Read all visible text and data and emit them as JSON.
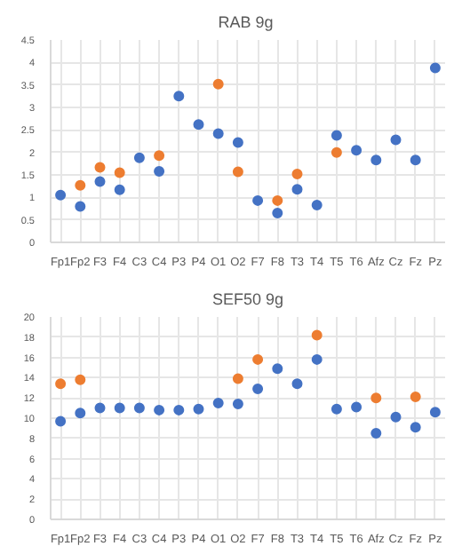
{
  "chart_data": [
    {
      "type": "scatter",
      "title": "RAB  9g",
      "categories": [
        "Fp1",
        "Fp2",
        "F3",
        "F4",
        "C3",
        "C4",
        "P3",
        "P4",
        "O1",
        "O2",
        "F7",
        "F8",
        "T3",
        "T4",
        "T5",
        "T6",
        "Afz",
        "Cz",
        "Fz",
        "Pz"
      ],
      "series": [
        {
          "color": "#4472c4",
          "values": [
            1.05,
            0.8,
            1.35,
            1.17,
            1.88,
            1.58,
            3.25,
            2.62,
            2.42,
            2.22,
            0.93,
            0.65,
            1.18,
            0.83,
            2.38,
            2.05,
            1.83,
            2.28,
            1.83,
            3.88
          ]
        },
        {
          "color": "#ed7d31",
          "values": [
            null,
            1.27,
            1.67,
            1.55,
            null,
            1.93,
            null,
            null,
            3.52,
            1.57,
            null,
            0.93,
            1.52,
            null,
            2.0,
            null,
            null,
            null,
            null,
            null
          ]
        }
      ],
      "ylim": [
        0,
        4.5
      ],
      "yticks": [
        0,
        0.5,
        1,
        1.5,
        2,
        2.5,
        3,
        3.5,
        4,
        4.5
      ],
      "grid": true,
      "marker": "circle"
    },
    {
      "type": "scatter",
      "title": "SEF50 9g",
      "categories": [
        "Fp1",
        "Fp2",
        "F3",
        "F4",
        "C3",
        "C4",
        "P3",
        "P4",
        "O1",
        "O2",
        "F7",
        "F8",
        "T3",
        "T4",
        "T5",
        "T6",
        "Afz",
        "Cz",
        "Fz",
        "Pz"
      ],
      "series": [
        {
          "color": "#4472c4",
          "values": [
            9.7,
            10.5,
            11.0,
            11.0,
            11.0,
            10.8,
            10.8,
            10.9,
            11.5,
            11.4,
            12.9,
            14.9,
            13.4,
            15.8,
            10.9,
            11.1,
            8.5,
            10.1,
            9.1,
            10.6
          ]
        },
        {
          "color": "#ed7d31",
          "values": [
            13.4,
            13.8,
            null,
            null,
            null,
            null,
            null,
            null,
            null,
            13.9,
            15.8,
            null,
            null,
            18.2,
            null,
            null,
            12.0,
            null,
            12.1,
            null
          ]
        }
      ],
      "ylim": [
        0,
        20
      ],
      "yticks": [
        0,
        2,
        4,
        6,
        8,
        10,
        12,
        14,
        16,
        18,
        20
      ],
      "grid": true,
      "marker": "circle"
    }
  ]
}
